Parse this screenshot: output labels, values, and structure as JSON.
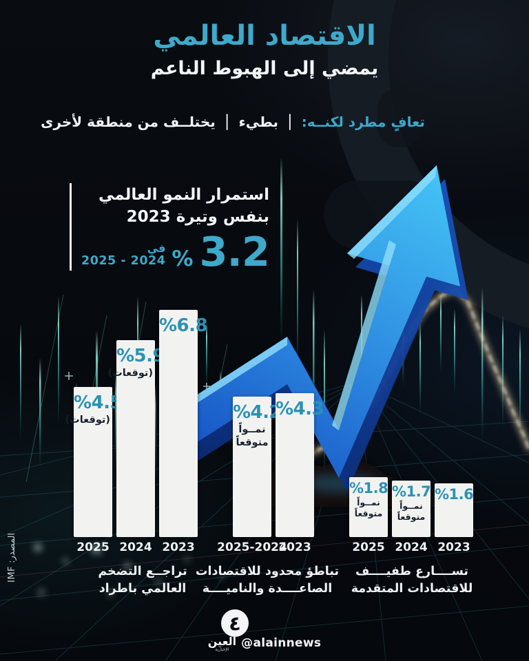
{
  "header": {
    "title": "الاقتصاد العالمي",
    "subtitle": "يمضي إلى الهبوط الناعم"
  },
  "tagline": {
    "lead": "تعافٍ مطرد لكنــه:",
    "separator": "|",
    "item1": "بطيء",
    "item2": "يختلــف من منطقة لأخرى"
  },
  "growth": {
    "line1": "استمرار النمو العالمي",
    "line2": "بنفس وتيرة 2023",
    "value": "3.2",
    "percent_sign": "%",
    "period_prefix": "في",
    "period": "2025 - 2024"
  },
  "chart_data": {
    "type": "bar",
    "unit": "%",
    "value_prefix": "%",
    "ylabel": "",
    "grid": false,
    "legend": "none",
    "groups": [
      {
        "label_line1": "تراجــع التضخم",
        "label_line2": "العالمي باطراد",
        "bars": [
          {
            "year": "2025",
            "value": 4.5,
            "note": "(توقعات)"
          },
          {
            "year": "2024",
            "value": 5.9,
            "note": "(توقعات)"
          },
          {
            "year": "2023",
            "value": 6.8,
            "note": ""
          }
        ]
      },
      {
        "label_line1": "تباطؤ محدود للاقتصادات",
        "label_line2": "الصاعــــدة والناميــــة",
        "bars": [
          {
            "year": "2025-2024",
            "value": 4.2,
            "note": "نمــواً متوقعاً"
          },
          {
            "year": "2023",
            "value": 4.3,
            "note": ""
          }
        ]
      },
      {
        "label_line1": "تســــارع طفيــــف",
        "label_line2": "للاقتصادات المتقدمة",
        "bars": [
          {
            "year": "2025",
            "value": 1.8,
            "note": "نمــواً متوقعاً"
          },
          {
            "year": "2024",
            "value": 1.7,
            "note": "نمــواً متوقعاً"
          },
          {
            "year": "2023",
            "value": 1.6,
            "note": ""
          }
        ]
      }
    ]
  },
  "source": "المصدر: IMF",
  "footer": {
    "brand": "العين",
    "brand_sub": "الإخبارية",
    "handle": "@alainnews",
    "logo_glyph": "٤"
  },
  "colors": {
    "accent_cyan": "#3EA9CB",
    "bar_value_teal": "#2B92B4",
    "bar_fill": "#f2f3f1",
    "arrow_blue_dark": "#1550c4",
    "arrow_blue_light": "#45c6f6",
    "background": "#070a0f"
  }
}
